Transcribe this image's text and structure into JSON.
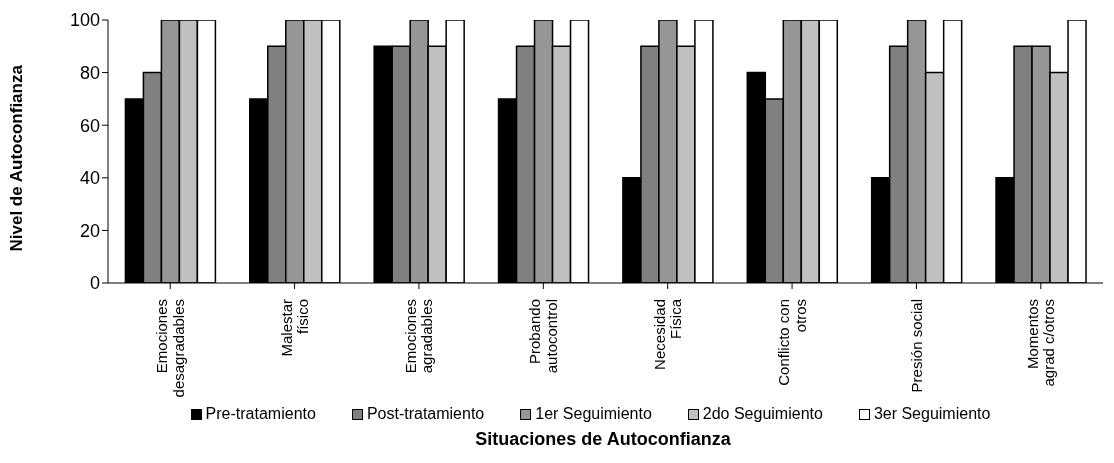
{
  "chart_data": {
    "type": "bar",
    "xlabel": "Situaciones de Autoconfianza",
    "ylabel": "Nivel de Autoconfianza",
    "categories": [
      "Emociones\ndesagradables",
      "Malestar\nfísico",
      "Emociones\nagradables",
      "Probando\nautocontrol",
      "Necesidad\nFísica",
      "Conflicto con\notros",
      "Presión social",
      "Momentos\nagrad c/otros"
    ],
    "series": [
      {
        "name": "Pre-tratamiento",
        "color": "#000000",
        "values": [
          70,
          70,
          90,
          70,
          40,
          80,
          40,
          40
        ]
      },
      {
        "name": "Post-tratamiento",
        "color": "#808080",
        "values": [
          80,
          90,
          90,
          90,
          90,
          70,
          90,
          90
        ]
      },
      {
        "name": "1er Seguimiento",
        "color": "#969696",
        "values": [
          100,
          100,
          100,
          100,
          100,
          100,
          100,
          90
        ]
      },
      {
        "name": "2do Seguimiento",
        "color": "#c0c0c0",
        "values": [
          100,
          100,
          90,
          90,
          90,
          100,
          80,
          80
        ]
      },
      {
        "name": "3er Seguimiento",
        "color": "#ffffff",
        "values": [
          100,
          100,
          100,
          100,
          100,
          100,
          100,
          100
        ]
      }
    ],
    "ylim": [
      0,
      100
    ],
    "yticks": [
      0,
      20,
      40,
      60,
      80,
      100
    ],
    "grid": false,
    "legend": "bottom"
  }
}
